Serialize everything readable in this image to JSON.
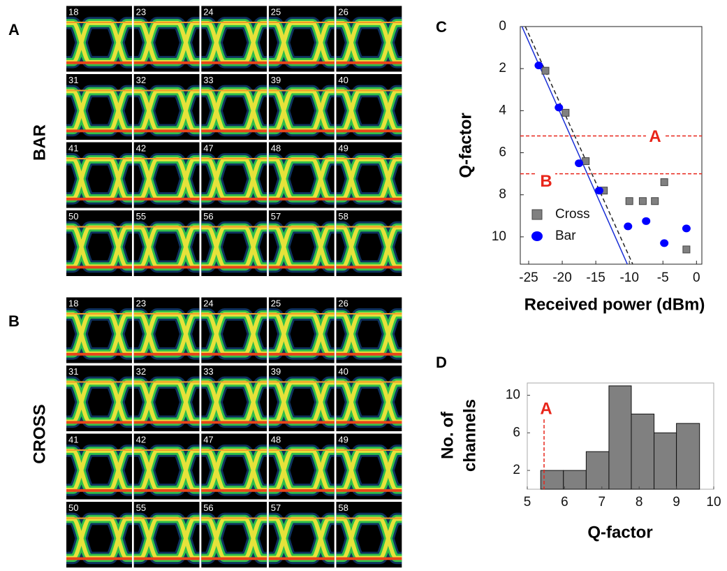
{
  "panels": [
    {
      "label": "A",
      "side_label": "BAR",
      "channels": [
        18,
        23,
        24,
        25,
        26,
        31,
        32,
        33,
        39,
        40,
        41,
        42,
        47,
        48,
        49,
        50,
        55,
        56,
        57,
        58
      ]
    },
    {
      "label": "B",
      "side_label": "CROSS",
      "channels": [
        18,
        23,
        24,
        25,
        26,
        31,
        32,
        33,
        39,
        40,
        41,
        42,
        47,
        48,
        49,
        50,
        55,
        56,
        57,
        58
      ]
    }
  ],
  "chart_data": [
    {
      "type": "scatter",
      "label": "C",
      "xlabel": "Received power (dBm)",
      "ylabel": "Q-factor",
      "xlim": [
        -26.25,
        0.8
      ],
      "ylim": [
        0,
        11.3
      ],
      "y_inverted": true,
      "xticks": [
        -25,
        -20,
        -15,
        -10,
        -5,
        0
      ],
      "yticks": [
        0,
        2,
        4,
        6,
        8,
        10
      ],
      "legend": "lower left",
      "series": [
        {
          "name": "Cross",
          "color": "#808080",
          "marker": "square",
          "x": [
            -22.5,
            -19.5,
            -16.5,
            -13.8,
            -10,
            -8,
            -6.2,
            -4.8,
            -1.5
          ],
          "values": [
            2.1,
            4.1,
            6.4,
            7.8,
            8.3,
            8.3,
            8.3,
            7.4,
            10.6
          ]
        },
        {
          "name": "Bar",
          "color": "#0000ff",
          "marker": "circle",
          "x": [
            -23.5,
            -20.5,
            -17.5,
            -14.5,
            -10.2,
            -7.5,
            -4.8,
            -1.5
          ],
          "values": [
            1.85,
            3.85,
            6.5,
            7.8,
            9.5,
            9.25,
            10.3,
            9.6
          ]
        }
      ],
      "fit_lines": [
        {
          "color": "#1a2fd6",
          "dashed": false,
          "x": [
            -26,
            -10.3
          ],
          "values": [
            0,
            11.3
          ]
        },
        {
          "color": "#222222",
          "dashed": true,
          "x": [
            -25.5,
            -9.5
          ],
          "values": [
            0,
            11.3
          ]
        }
      ],
      "threshold_color": "#e8251a",
      "thresholds": [
        {
          "label": "A",
          "value": 5.2
        },
        {
          "label": "B",
          "value": 7.0
        }
      ]
    },
    {
      "type": "histogram",
      "label": "D",
      "xlabel": "Q-factor",
      "ylabel": [
        "No. of",
        "channels"
      ],
      "xlim": [
        5,
        10
      ],
      "ylim": [
        0,
        11.3
      ],
      "xticks": [
        5,
        6,
        7,
        8,
        9,
        10
      ],
      "yticks": [
        2,
        6,
        10
      ],
      "bins": [
        5.36,
        5.97,
        6.58,
        7.19,
        7.79,
        8.4,
        9.0,
        9.62
      ],
      "values": [
        2,
        2,
        4,
        11,
        8,
        6,
        7
      ],
      "color": "#808080",
      "threshold_color": "#e8251a",
      "thresholds": [
        {
          "label": "A",
          "value": 5.45
        }
      ]
    }
  ]
}
